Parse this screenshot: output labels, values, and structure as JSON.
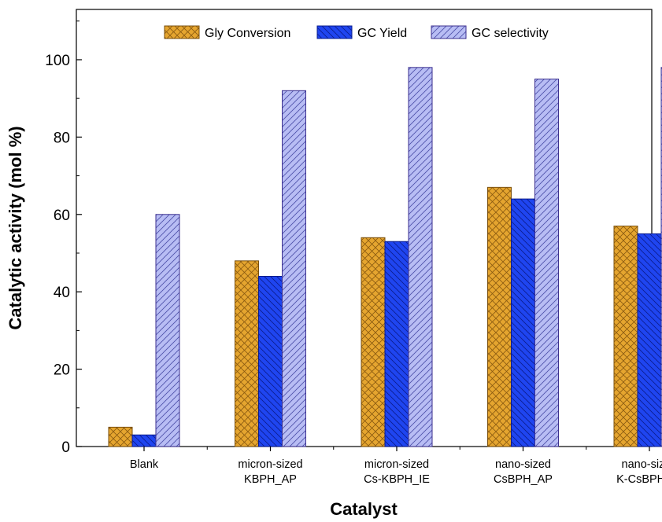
{
  "chart_data": {
    "type": "bar",
    "title": "",
    "xlabel": "Catalyst",
    "ylabel": "Catalytic activity (mol %)",
    "ylim": [
      0,
      113
    ],
    "yticks": [
      0,
      20,
      40,
      60,
      80,
      100
    ],
    "grid": false,
    "legend_position": "top-center",
    "categories": [
      [
        "Blank"
      ],
      [
        "micron-sized",
        "KBPH_AP"
      ],
      [
        "micron-sized",
        "Cs-KBPH_IE"
      ],
      [
        "nano-sized",
        "CsBPH_AP"
      ],
      [
        "nano-sized",
        "K-CsBPH_IE"
      ]
    ],
    "series": [
      {
        "name": "Gly Conversion",
        "values": [
          5,
          48,
          54,
          67,
          57
        ],
        "color": "#e5a52f",
        "pattern": "crosshatch"
      },
      {
        "name": "GC Yield",
        "values": [
          3,
          44,
          53,
          64,
          55
        ],
        "color": "#1f45f0",
        "pattern": "back-diagonal"
      },
      {
        "name": "GC selectivity",
        "values": [
          60,
          92,
          98,
          95,
          98
        ],
        "color": "#b8bdf4",
        "pattern": "forward-diagonal"
      }
    ]
  }
}
